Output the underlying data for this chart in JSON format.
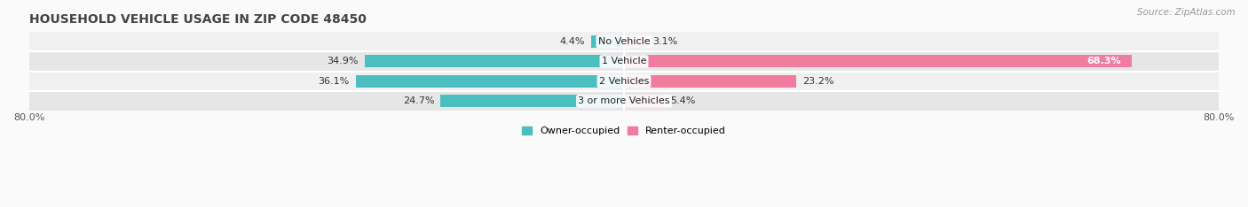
{
  "title": "HOUSEHOLD VEHICLE USAGE IN ZIP CODE 48450",
  "source": "Source: ZipAtlas.com",
  "categories": [
    "No Vehicle",
    "1 Vehicle",
    "2 Vehicles",
    "3 or more Vehicles"
  ],
  "owner_values": [
    4.4,
    34.9,
    36.1,
    24.7
  ],
  "renter_values": [
    3.1,
    68.3,
    23.2,
    5.4
  ],
  "owner_color": "#4BBFBF",
  "renter_color": "#F07CA0",
  "xlim": [
    -80,
    80
  ],
  "xticks": [
    -80,
    80
  ],
  "xticklabels": [
    "80.0%",
    "80.0%"
  ],
  "legend_owner": "Owner-occupied",
  "legend_renter": "Renter-occupied",
  "bar_height": 0.62,
  "title_fontsize": 10,
  "label_fontsize": 8,
  "cat_fontsize": 8,
  "source_fontsize": 7.5,
  "row_bg_even": "#F0F0F0",
  "row_bg_odd": "#E6E6E6",
  "inside_label_threshold": 60
}
